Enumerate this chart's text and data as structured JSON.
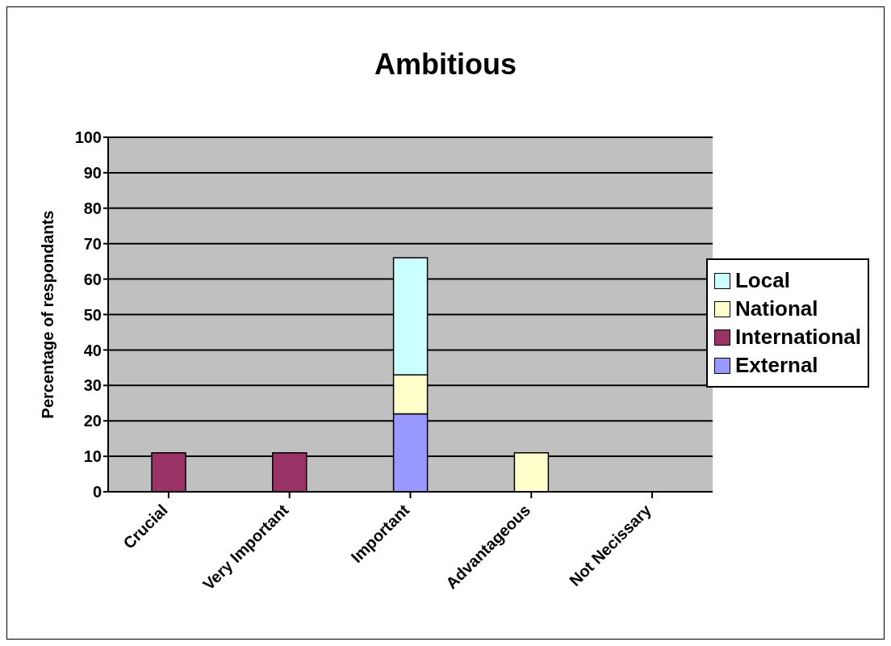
{
  "chart_data": {
    "type": "bar",
    "title": "Ambitious",
    "ylabel": "Percentage of respondants",
    "categories": [
      "Crucial",
      "Very Important",
      "Important",
      "Advantageous",
      "Not Necissary"
    ],
    "stacked": true,
    "series": [
      {
        "name": "External",
        "color": "#9999ff",
        "values": [
          null,
          null,
          22,
          null,
          null
        ]
      },
      {
        "name": "International",
        "color": "#993366",
        "values": [
          11,
          11,
          null,
          null,
          null
        ]
      },
      {
        "name": "National",
        "color": "#ffffcc",
        "values": [
          null,
          null,
          11,
          11,
          null
        ]
      },
      {
        "name": "Local",
        "color": "#ccffff",
        "values": [
          null,
          null,
          33,
          null,
          null
        ]
      }
    ],
    "ylim": [
      0,
      100
    ],
    "yticks": [
      0,
      10,
      20,
      30,
      40,
      50,
      60,
      70,
      80,
      90,
      100
    ],
    "grid": "y",
    "legend": "right"
  }
}
